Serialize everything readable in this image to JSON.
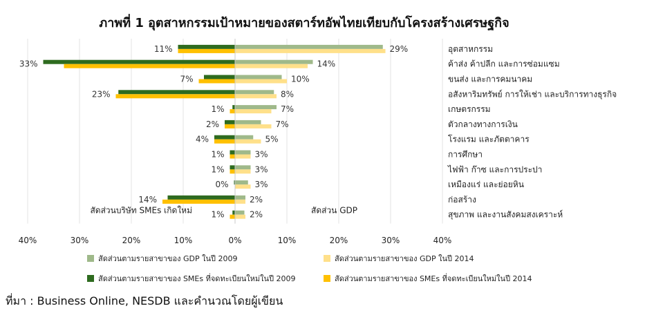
{
  "title": "ภาพที่ 1 อุตสาหกรรมเป้าหมายของสตาร์ทอัพไทยเทียบกับโครงสร้างเศรษฐกิจ",
  "source": "ที่มา : Business Online, NESDB และคำนวณโดยผู้เขียน",
  "chart_data": {
    "type": "bar",
    "orientation": "horizontal",
    "title": "ภาพที่ 1 อุตสาหกรรมเป้าหมายของสตาร์ทอัพไทยเทียบกับโครงสร้างเศรษฐกิจ",
    "categories": [
      "อุตสาหกรรม",
      "ค้าส่ง ค้าปลีก และการซ่อมแซม",
      "ขนส่ง และการคมนาคม",
      "อสังหาริมทรัพย์ การให้เช่า และบริการทางธุรกิจ",
      "เกษตรกรรม",
      "ตัวกลางทางการเงิน",
      "โรงแรม และภัตตาคาร",
      "การศึกษา",
      "ไฟฟ้า ก๊าซ และการประปา",
      "เหมืองแร่ และย่อยหิน",
      "ก่อสร้าง",
      "สุขภาพ และงานสังคมสงเคราะห์"
    ],
    "left_side_label": "สัดส่วนบริษัท SMEs เกิดใหม่",
    "right_side_label": "สัดส่วน GDP",
    "xlim": [
      -40,
      40
    ],
    "x_ticks": [
      -40,
      -30,
      -20,
      -10,
      0,
      10,
      20,
      30,
      40
    ],
    "x_tick_labels": [
      "40%",
      "30%",
      "20%",
      "10%",
      "0%",
      "10%",
      "20%",
      "30%",
      "40%"
    ],
    "left_value_labels": [
      "11%",
      "33%",
      "7%",
      "23%",
      "1%",
      "2%",
      "4%",
      "1%",
      "1%",
      "0%",
      "14%",
      "1%"
    ],
    "right_value_labels": [
      "29%",
      "14%",
      "10%",
      "8%",
      "7%",
      "7%",
      "5%",
      "3%",
      "3%",
      "3%",
      "2%",
      "2%"
    ],
    "series": [
      {
        "name": "สัดส่วนตามรายสาขาของ GDP ในปี 2009",
        "color": "#9fb98a",
        "side": "right",
        "values": [
          28.5,
          15,
          9,
          7.5,
          8,
          5,
          3.5,
          3,
          3,
          2.5,
          2,
          1.8
        ]
      },
      {
        "name": "สัดส่วนตามรายสาขาของ GDP ในปี 2014",
        "color": "#ffe08a",
        "side": "right",
        "values": [
          29,
          14,
          10,
          8,
          7,
          7,
          5,
          3,
          3,
          3,
          2,
          2
        ]
      },
      {
        "name": "สัดส่วนตามรายสาขาของ SMEs ที่จดทะเบียนใหม่ในปี 2009",
        "color": "#2e6b1f",
        "side": "left",
        "values": [
          11,
          37,
          6,
          22.5,
          0.5,
          2,
          4,
          1,
          1,
          0.2,
          13,
          0.5
        ]
      },
      {
        "name": "สัดส่วนตามรายสาขาของ SMEs ที่จดทะเบียนใหม่ในปี 2014",
        "color": "#ffc000",
        "side": "left",
        "values": [
          11,
          33,
          7,
          23,
          1,
          2,
          4,
          1,
          1,
          0,
          14,
          1
        ]
      }
    ],
    "grid": true,
    "legend_position": "bottom"
  }
}
